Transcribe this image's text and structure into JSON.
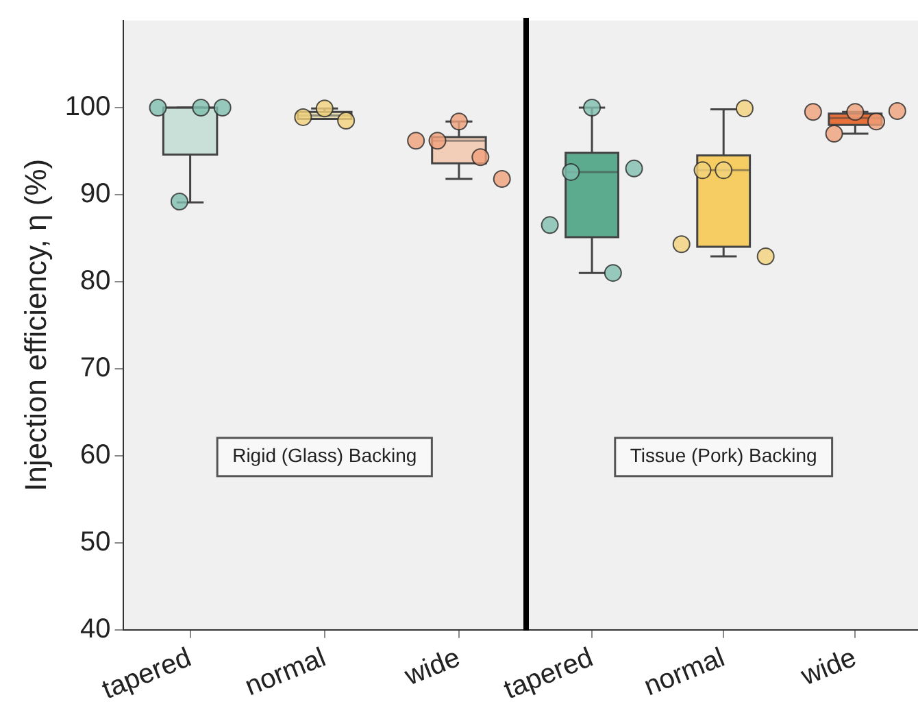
{
  "chart_data": [
    {
      "type": "box",
      "ylabel": "Injection efficiency, η (%)",
      "categories": [
        "tapered",
        "normal",
        "wide"
      ],
      "boxes": [
        {
          "low": 89.1,
          "q1": 94.6,
          "median": 100,
          "q3": 100,
          "high": 100
        },
        {
          "low": 98.9,
          "q1": 98.7,
          "median": 99.1,
          "q3": 99.5,
          "high": 99.9
        },
        {
          "low": 91.8,
          "q1": 93.6,
          "median": 96.2,
          "q3": 96.6,
          "high": 98.4
        }
      ],
      "colors": [
        "#c8e0d7",
        "#e6dcb4",
        "#f2cdb8"
      ],
      "series": [
        {
          "type": "scatter",
          "x": [
            "tapered",
            "tapered",
            "tapered",
            "tapered",
            "normal",
            "normal",
            "normal",
            "wide",
            "wide",
            "wide",
            "wide",
            "wide"
          ],
          "values": [
            100,
            89.2,
            100,
            100,
            98.9,
            99.9,
            98.5,
            96.2,
            96.2,
            98.4,
            94.3,
            91.8
          ],
          "colors": [
            "#7fbfae",
            "#7fbfae",
            "#7fbfae",
            "#7fbfae",
            "#f3d27a",
            "#f3d27a",
            "#f3d27a",
            "#f0a07a",
            "#f0a07a",
            "#f0a07a",
            "#f0a07a",
            "#f0a07a"
          ]
        }
      ],
      "annotations": [
        "Rigid (Glass) Backing"
      ],
      "ylim": [
        40,
        110
      ],
      "yticks": [
        40,
        50,
        60,
        70,
        80,
        90,
        100
      ],
      "grid": false,
      "legend": false
    },
    {
      "type": "box",
      "categories": [
        "tapered",
        "normal",
        "wide"
      ],
      "boxes": [
        {
          "low": 81.0,
          "q1": 85.1,
          "median": 92.6,
          "q3": 94.8,
          "high": 100
        },
        {
          "low": 82.9,
          "q1": 84.0,
          "median": 92.8,
          "q3": 94.5,
          "high": 99.8
        },
        {
          "low": 97.0,
          "q1": 98.0,
          "median": 98.8,
          "q3": 99.3,
          "high": 99.5
        }
      ],
      "colors": [
        "#5cab8f",
        "#f6cd63",
        "#e8703a"
      ],
      "series": [
        {
          "type": "scatter",
          "x": [
            "tapered",
            "tapered",
            "tapered",
            "tapered",
            "tapered",
            "normal",
            "normal",
            "normal",
            "normal",
            "normal",
            "wide",
            "wide",
            "wide",
            "wide",
            "wide"
          ],
          "values": [
            86.5,
            92.6,
            100,
            81.0,
            93.0,
            84.3,
            92.8,
            92.8,
            99.9,
            82.9,
            99.5,
            97.0,
            99.5,
            98.4,
            99.6
          ],
          "colors": [
            "#7fbfae",
            "#7fbfae",
            "#7fbfae",
            "#7fbfae",
            "#7fbfae",
            "#f3d27a",
            "#f3d27a",
            "#f3d27a",
            "#f3d27a",
            "#f3d27a",
            "#f0a07a",
            "#f0a07a",
            "#f0a07a",
            "#f0a07a",
            "#f0a07a"
          ]
        }
      ],
      "annotations": [
        "Tissue (Pork) Backing"
      ],
      "ylim": [
        40,
        110
      ],
      "yticks": [
        40,
        50,
        60,
        70,
        80,
        90,
        100
      ],
      "tick_labels": "x",
      "grid": false,
      "legend": false
    }
  ]
}
